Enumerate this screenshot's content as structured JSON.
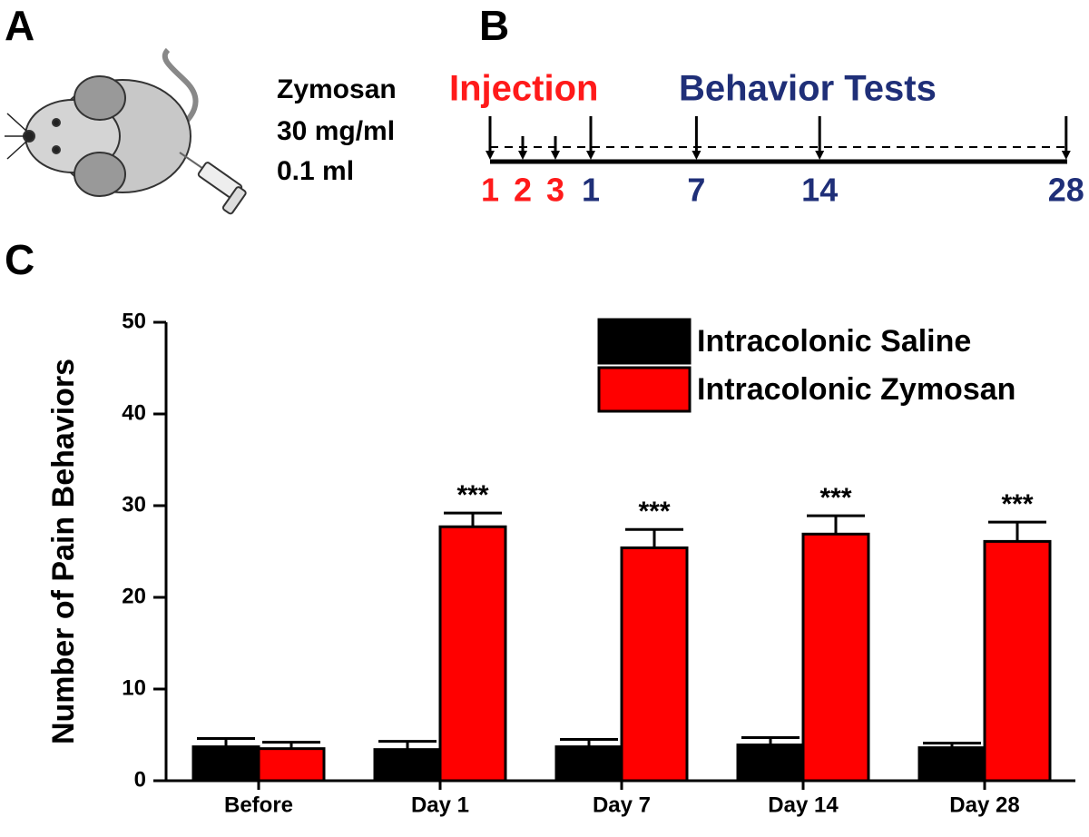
{
  "panel_labels": [
    "A",
    "B",
    "C"
  ],
  "dose": [
    "Zymosan",
    "30 mg/ml",
    "0.1 ml"
  ],
  "timeline": {
    "injection_label": "Injection",
    "tests_label": "Behavior Tests",
    "injection_days": [
      1,
      2,
      3
    ],
    "test_days": [
      1,
      7,
      14,
      28
    ]
  },
  "chart_data": {
    "type": "bar",
    "ylabel": "Number of Pain Behaviors",
    "categories": [
      "Before",
      "Day 1",
      "Day 7",
      "Day 14",
      "Day 28"
    ],
    "series": [
      {
        "name": "Intracolonic Saline",
        "color": "#000000",
        "values": [
          3.7,
          3.4,
          3.7,
          3.9,
          3.6
        ],
        "errors": [
          0.9,
          0.9,
          0.8,
          0.8,
          0.5
        ]
      },
      {
        "name": "Intracolonic Zymosan",
        "color": "#ff0000",
        "values": [
          3.5,
          27.7,
          25.4,
          26.9,
          26.1
        ],
        "errors": [
          0.7,
          1.5,
          2.0,
          2.0,
          2.1
        ],
        "annotations": [
          null,
          "***",
          "***",
          "***",
          "***"
        ]
      }
    ],
    "ylim": [
      0,
      50
    ],
    "yticks": [
      0,
      10,
      20,
      30,
      40,
      50
    ],
    "legend": "top-right"
  }
}
